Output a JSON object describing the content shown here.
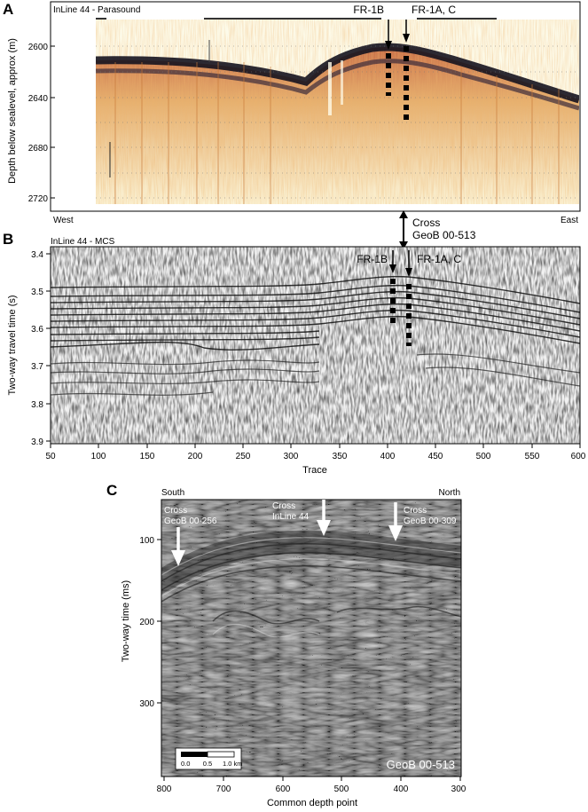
{
  "panel_a": {
    "letter": "A",
    "title": "InLine 44 - Parasound",
    "ylabel": "Depth below sealevel, approx (m)",
    "y_ticks": [
      "2600",
      "2640",
      "2680",
      "2720"
    ],
    "left_label": "West",
    "right_label": "East",
    "marker_1b": "FR-1B",
    "marker_1ac": "FR-1A, C"
  },
  "cross_label": {
    "line1": "Cross",
    "line2": "GeoB 00-513"
  },
  "panel_b": {
    "letter": "B",
    "title": "InLine 44 - MCS",
    "ylabel": "Two-way travel time (s)",
    "y_ticks": [
      "3.4",
      "3.5",
      "3.6",
      "3.7",
      "3.8",
      "3.9"
    ],
    "x_ticks": [
      "50",
      "100",
      "150",
      "200",
      "250",
      "300",
      "350",
      "400",
      "450",
      "500",
      "550",
      "600"
    ],
    "xlabel": "Trace",
    "marker_1b": "FR-1B",
    "marker_1ac": "FR-1A, C"
  },
  "panel_c": {
    "letter": "C",
    "left_label": "South",
    "right_label": "North",
    "ylabel": "Two-way time (ms)",
    "y_ticks": [
      "100",
      "200",
      "300"
    ],
    "x_ticks": [
      "800",
      "700",
      "600",
      "500",
      "400",
      "300"
    ],
    "xlabel": "Common depth point",
    "cross1": {
      "line1": "Cross",
      "line2": "GeoB 00-256"
    },
    "cross2": {
      "line1": "Cross",
      "line2": "InLine 44"
    },
    "cross3": {
      "line1": "Cross",
      "line2": "GeoB 00-309"
    },
    "scale_ticks": [
      "0.0",
      "0.5",
      "1.0 km"
    ],
    "profile_name": "GeoB 00-513"
  }
}
